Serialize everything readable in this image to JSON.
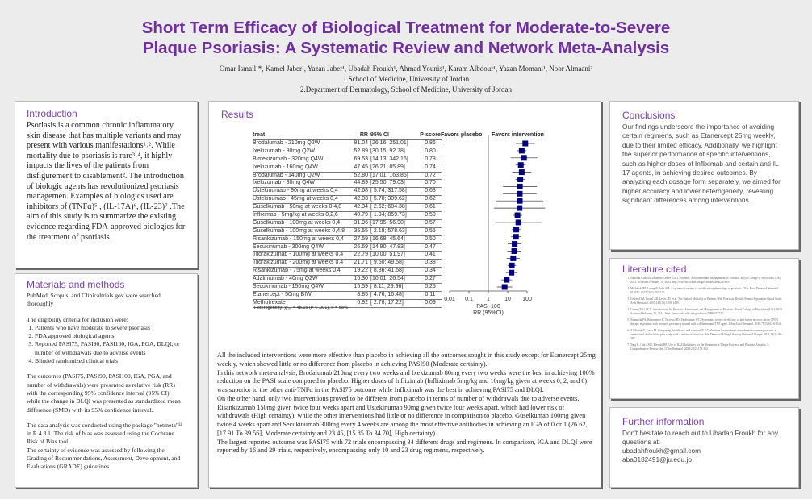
{
  "header": {
    "title_line1": "Short Term Efficacy of Biological Treatment for Moderate-to-Severe",
    "title_line2": "Plaque Psoriasis: A Systematic Review and Network Meta-Analysis",
    "authors": "Omar Ismail¹*, Kamel Jaber¹, Yazan Jaber¹, Ubadah Froukh¹, Ahmad Younis¹, Karam Albdour¹, Yazan Momani¹, Noor Almaani²",
    "affiliation1": "1.School of Medicine, University of Jordan",
    "affiliation2": "2.Department of Dermatology, School of Medicine, University of Jordan"
  },
  "introduction": {
    "heading": "Introduction",
    "text": "Psoriasis is a common chronic inflammatory skin disease that has multiple variants and may present with various manifestations¹˒². While mortality due to psoriasis is rare³˒⁴, it highly impacts the lives of the patients from disfigurement to disablement². The introduction of biologic agents has revolutionized psoriasis managemen. Examples of biologics used are inhibitors of (TNFα)⁵ , (IL-17A)⁶, (IL-23)⁷ .The aim of this study is to summarize the existing evidence regarding FDA-approved biologics for the treatment of psoriasis."
  },
  "methods": {
    "heading": "Materials and methods",
    "search": "PubMed, Scopus, and Clinicaltrials.gov were searched thoroughly",
    "criteria_intro": "The eligibility criteria for inclusion were:",
    "criteria": [
      "Patients who have moderate to severe psoriasis",
      "FDA approved biological agents",
      "Reported PASI75, PASI90, PASI100, IGA, PGA, DLQI, or number of withdrawals due to adverse events",
      "Blinded randomized clinical trials"
    ],
    "outcomes": "The outcomes (PASI75, PASI90, PASI100, IGA, PGA, and number of withdrawals) were presented as relative risk (RR) with the corresponding 95% confidence interval (95% CI), while the change in DLQI was presented as standardized mean difference (SMD) with its 95% confidence interval.",
    "analysis": "The data analysis was conducted using the package \"netmeta\"¹² in R 4.3.1. The risk of bias was assessed using the Cochrane Risk of Bias tool.",
    "grade": "The certainty of evidence was assessed by following the Grading of Recommendations, Assessment, Development, and Evaluations (GRADE) guidelines"
  },
  "results": {
    "heading": "Results",
    "heterogeneity": "Heterogeneity: χ²₂₈ = 48.15 (P < .001), I² = 58%",
    "paragraphs": [
      "All the included interventions were more effective than placebo in achieving all the outcomes sought in this study except for Etanercept 25mg weekly, which showed little or no difference from placebo in achieving PASI90 (Moderate certainty).",
      "In this network meta-analysis, Brodalumab 210mg every two weeks and Ixekizumab 80mg every two weeks were the best in achieving 100% reduction on the PASI scale compared to placebo. Higher doses of Infliximab (Infliximab 5mg/kg and 10mg/kg given at weeks 0, 2, and 6) was superior to the other anti-TNFα in the PASI75 outcome while Infliximab was the best in achieving PASI75 and DLQI.",
      "On the other hand, only two interventions proved to be different from placebo in terms of number of withdrawals due to adverse events, Risankizumab 150mg given twice four weeks apart and Ustekinumab 90mg given twice four weeks apart, which had lower risk of withdrawals (High certainty), while the other interventions had little or no difference in comparison to placebo. Guselkumab 100mg given twice 4 weeks apart and Secukinumab 300mg every 4 weeks are among the most effective antibodies in achieving an IGA of 0 or 1 (26.62, [17.91 To 39.56], Moderate certainty and 23.45, [15.85 To 34.70], High certainty).",
      "The largest reported outcome was PASI75 with 72 trials encompassing 34 different drugs and regimens. In comparison, IGA and DLQI were reported by 16 and 29 trials, respectively, encompassing only 10 and 23 drug regimens, respectively."
    ]
  },
  "chart_data": {
    "type": "forest",
    "columns": [
      "treat",
      "RR",
      "95% CI",
      "P-score"
    ],
    "left_label": "Favors placebo",
    "right_label": "Favors intervention",
    "xlabel_line1": "PASI-100",
    "xlabel_line2": "RR (95%CI)",
    "x_scale": "log",
    "x_ticks": [
      "0.01",
      "0.1",
      "1",
      "10",
      "100"
    ],
    "xlim": [
      0.01,
      100
    ],
    "reference_line": 1,
    "marker_color": "#00007f",
    "rows": [
      {
        "treat": "Brodalumab - 210mg Q2W",
        "rr": 81.04,
        "lo": 26.16,
        "hi": 251.01,
        "ci": "[26.16; 251.01]",
        "p": "0.86"
      },
      {
        "treat": "Ixekizumab - 80mg Q2W",
        "rr": 52.89,
        "lo": 30.15,
        "hi": 92.78,
        "ci": "[30.15;  92.78]",
        "p": "0.80"
      },
      {
        "treat": "Bimekizumab - 320mg Q4W",
        "rr": 69.53,
        "lo": 14.13,
        "hi": 342.16,
        "ci": "[14.13; 342.16]",
        "p": "0.78"
      },
      {
        "treat": "Ixekizumab - 160mg Q4W",
        "rr": 47.45,
        "lo": 26.21,
        "hi": 85.89,
        "ci": "[26.21;  85.89]",
        "p": "0.74"
      },
      {
        "treat": "Brodalumab - 140mg Q2W",
        "rr": 52.8,
        "lo": 17.01,
        "hi": 163.86,
        "ci": "[17.01; 163.86]",
        "p": "0.72"
      },
      {
        "treat": "Ixekizumab - 80mg Q4W",
        "rr": 44.89,
        "lo": 25.5,
        "hi": 79.03,
        "ci": "[25.50;  79.03]",
        "p": "0.70"
      },
      {
        "treat": "Ustekinumab - 90mg at weeks 0,4",
        "rr": 42.68,
        "lo": 5.74,
        "hi": 317.58,
        "ci": "[ 5.74; 317.58]",
        "p": "0.63"
      },
      {
        "treat": "Ustekinumab - 45mg at weeks 0,4",
        "rr": 42.03,
        "lo": 5.7,
        "hi": 309.62,
        "ci": "[ 5.70; 309.62]",
        "p": "0.62"
      },
      {
        "treat": "Guselkumab - 50mg at weeks 0,4,8",
        "rr": 42.34,
        "lo": 2.62,
        "hi": 684.38,
        "ci": "[ 2.62; 684.38]",
        "p": "0.61"
      },
      {
        "treat": "Infliximab - 5mg/kg at weeks 0,2,6",
        "rr": 40.79,
        "lo": 1.94,
        "hi": 859.73,
        "ci": "[ 1.94; 859.73]",
        "p": "0.59"
      },
      {
        "treat": "Guselkumab - 100mg at weeks 0,4",
        "rr": 31.96,
        "lo": 17.95,
        "hi": 56.9,
        "ci": "[17.95;  56.90]",
        "p": "0.57"
      },
      {
        "treat": "Guselkumab - 100mg at weeks 0,4,8",
        "rr": 35.55,
        "lo": 2.18,
        "hi": 578.63,
        "ci": "[ 2.18; 578.63]",
        "p": "0.55"
      },
      {
        "treat": "Risankizumab - 150mg at weeks 0,4",
        "rr": 27.59,
        "lo": 16.68,
        "hi": 45.64,
        "ci": "[16.68;  45.64]",
        "p": "0.50"
      },
      {
        "treat": "Secukinumab - 300mg Q4W",
        "rr": 26.69,
        "lo": 14.9,
        "hi": 47.83,
        "ci": "[14.90;  47.83]",
        "p": "0.47"
      },
      {
        "treat": "Tildrakizumab - 100mg at weeks 0,4",
        "rr": 22.79,
        "lo": 10.0,
        "hi": 51.97,
        "ci": "[10.00;  51.97]",
        "p": "0.41"
      },
      {
        "treat": "Tildrakizumab - 200mg at weeks 0,4",
        "rr": 21.71,
        "lo": 9.5,
        "hi": 49.58,
        "ci": "[ 9.50;  49.58]",
        "p": "0.38"
      },
      {
        "treat": "Risankizumab - 75mg at weeks 0,4",
        "rr": 19.22,
        "lo": 8.86,
        "hi": 41.68,
        "ci": "[ 8.86;  41.68]",
        "p": "0.34"
      },
      {
        "treat": "Adalimumab - 40mg Q2W",
        "rr": 16.3,
        "lo": 10.01,
        "hi": 26.54,
        "ci": "[10.01;  26.54]",
        "p": "0.27"
      },
      {
        "treat": "Secukinumab - 150mg Q4W",
        "rr": 15.59,
        "lo": 8.11,
        "hi": 29.96,
        "ci": "[ 8.11;  29.96]",
        "p": "0.25"
      },
      {
        "treat": "Etanercept - 50mg BIW",
        "rr": 8.85,
        "lo": 4.76,
        "hi": 16.48,
        "ci": "[ 4.76;  16.48]",
        "p": "0.11"
      },
      {
        "treat": "Methotrexate",
        "rr": 6.92,
        "lo": 2.78,
        "hi": 17.22,
        "ci": "[ 2.78;  17.22]",
        "p": "0.09"
      }
    ]
  },
  "conclusions": {
    "heading": "Conclusions",
    "text": "Our findings underscore the importance of avoiding certain regimens, such as Etanercept 25mg weekly, due to their limited efficacy. Additionally, we highlight the superior performance of specific interventions, such as higher doses of Infliximab and certain anti-IL 17 agents, in achieving desired outcomes. By analyzing each dosage form separately, we aimed for higher accuracy and lower heterogeneity, revealing significant differences among interventions."
  },
  "literature": {
    "heading": "Literature cited",
    "items": [
      "National Clinical Guideline Centre (UK). Psoriasis: Assessment and Management of Psoriasis. Royal College of Physicians (UK); 2012. Accessed February 10, 2024. http://www.ncbi.nlm.nih.gov/books/NBK247829/",
      "Michalek IM, Loring B, John SM. A systematic review of worldwide epidemiology of psoriasis. J Eur Acad Dermatol Venereol JEADV. 2017;31(2):205-212.",
      "Gelfand JM, Troxel AB, Lewis JD, et al. The Risk of Mortality in Patients With Psoriasis: Results From a Population-Based Study. Arch Dermatol. 2007;143(12):1493-1499.",
      "Centre (UK) NCG. Introduction. In: Psoriasis: Assessment and Management of Psoriasis. Royal College of Physicians (UK); 2012. Accessed February 10, 2024. https://www.ncbi.nlm.nih.gov/books/NBK327727/",
      "Yamauchi PS, Bissonnette R, Teixeira HD, Valdecantos WC. Systematic review of efficacy of anti-tumor necrosis factor (TNF) therapy in patients with psoriasis previously treated with a different anti-TNF agent. J Am Acad Dermatol. 2016;75(3):612-618.e6.",
      "AlMutairi N, Eassa BI. Comparing the efficacy and safety of IL-17 inhibitors for treatment of moderate-to-severe psoriasis: a randomized double blind pilot study with a review of literature. Adv Dermatol Allergol Postepy Dermatol Alergol. 2021;38(2):281-288.",
      "Tang K, Oak ASW, Elewski BE. Use of IL-23 Inhibitors for the Treatment of Plaque Psoriasis and Psoriatic Arthritis: A Comprehensive Review. Am J Clin Dermatol. 2021;22(2):173-192."
    ]
  },
  "further": {
    "heading": "Further information",
    "text": "Don't hesitate to reach out to Ubadah Froukh for any questions at:",
    "email1": "ubadahfroukh@gmail.com",
    "email2": "aba0182491@ju.edu.jo"
  }
}
